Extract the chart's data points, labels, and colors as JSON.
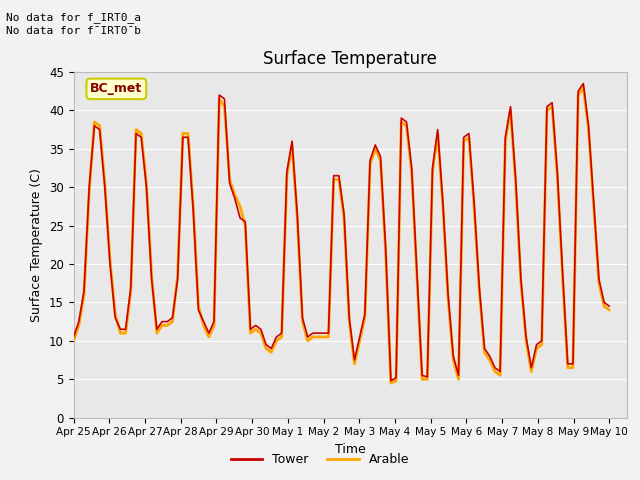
{
  "title": "Surface Temperature",
  "xlabel": "Time",
  "ylabel": "Surface Temperature (C)",
  "ylim": [
    0,
    45
  ],
  "background_color": "#f2f2f2",
  "plot_bg_color": "#e8e8e8",
  "tower_color": "#cc0000",
  "arable_color": "#ffa500",
  "grid_color": "#ffffff",
  "annotation_line1": "No data for f_IRT0_a",
  "annotation_line2": "No data for f¯IRT0¯b",
  "legend_box_label": "BC_met",
  "legend_box_facecolor": "#ffffcc",
  "legend_box_edgecolor": "#cccc00",
  "x_tick_labels": [
    "Apr 25",
    "Apr 26",
    "Apr 27",
    "Apr 28",
    "Apr 29",
    "Apr 30",
    "May 1",
    "May 2",
    "May 3",
    "May 4",
    "May 5",
    "May 6",
    "May 7",
    "May 8",
    "May 9",
    "May 10"
  ],
  "tower_data": [
    10.5,
    12.5,
    16.5,
    30.0,
    38.0,
    37.5,
    30.0,
    20.0,
    13.0,
    11.5,
    11.5,
    17.0,
    37.0,
    36.5,
    30.0,
    18.0,
    11.5,
    12.5,
    12.5,
    13.0,
    18.0,
    36.5,
    36.5,
    27.0,
    14.0,
    12.5,
    11.0,
    12.5,
    42.0,
    41.5,
    30.5,
    28.5,
    26.0,
    25.5,
    11.5,
    12.0,
    11.5,
    9.5,
    9.0,
    10.5,
    11.0,
    32.0,
    36.0,
    26.5,
    13.0,
    10.5,
    11.0,
    11.0,
    11.0,
    11.0,
    31.5,
    31.5,
    26.5,
    13.0,
    7.5,
    10.5,
    13.5,
    33.5,
    35.5,
    34.0,
    22.0,
    4.8,
    5.2,
    39.0,
    38.5,
    32.5,
    19.0,
    5.5,
    5.3,
    32.5,
    37.5,
    28.0,
    16.0,
    8.0,
    5.5,
    36.5,
    37.0,
    28.0,
    17.0,
    9.0,
    8.0,
    6.5,
    6.0,
    36.5,
    40.5,
    31.0,
    18.0,
    10.5,
    6.5,
    9.5,
    10.0,
    40.5,
    41.0,
    32.0,
    19.0,
    7.0,
    7.0,
    42.5,
    43.5,
    38.0,
    28.0,
    18.0,
    15.0,
    14.5
  ],
  "arable_data": [
    10.0,
    12.0,
    16.0,
    29.5,
    38.5,
    38.0,
    30.5,
    20.5,
    13.5,
    11.0,
    11.0,
    16.5,
    37.5,
    37.0,
    30.5,
    18.5,
    11.0,
    12.0,
    12.0,
    12.5,
    18.5,
    37.0,
    37.0,
    27.5,
    14.5,
    12.0,
    10.5,
    12.0,
    41.5,
    40.5,
    31.0,
    29.0,
    27.5,
    25.0,
    11.0,
    11.5,
    11.0,
    9.0,
    8.5,
    10.0,
    10.5,
    31.5,
    35.5,
    26.0,
    12.5,
    10.0,
    10.5,
    10.5,
    10.5,
    10.5,
    31.0,
    31.0,
    26.0,
    12.5,
    7.0,
    10.0,
    13.0,
    33.0,
    35.0,
    33.5,
    21.5,
    4.5,
    4.8,
    38.5,
    38.0,
    32.0,
    18.5,
    5.0,
    5.0,
    32.0,
    37.0,
    27.5,
    15.5,
    7.5,
    5.0,
    36.0,
    36.5,
    27.5,
    16.5,
    8.5,
    7.5,
    6.0,
    5.5,
    36.0,
    40.0,
    30.5,
    17.5,
    10.0,
    6.0,
    9.0,
    9.5,
    40.0,
    40.5,
    31.5,
    18.5,
    6.5,
    6.5,
    42.0,
    43.0,
    37.5,
    27.5,
    17.5,
    14.5,
    14.0
  ]
}
